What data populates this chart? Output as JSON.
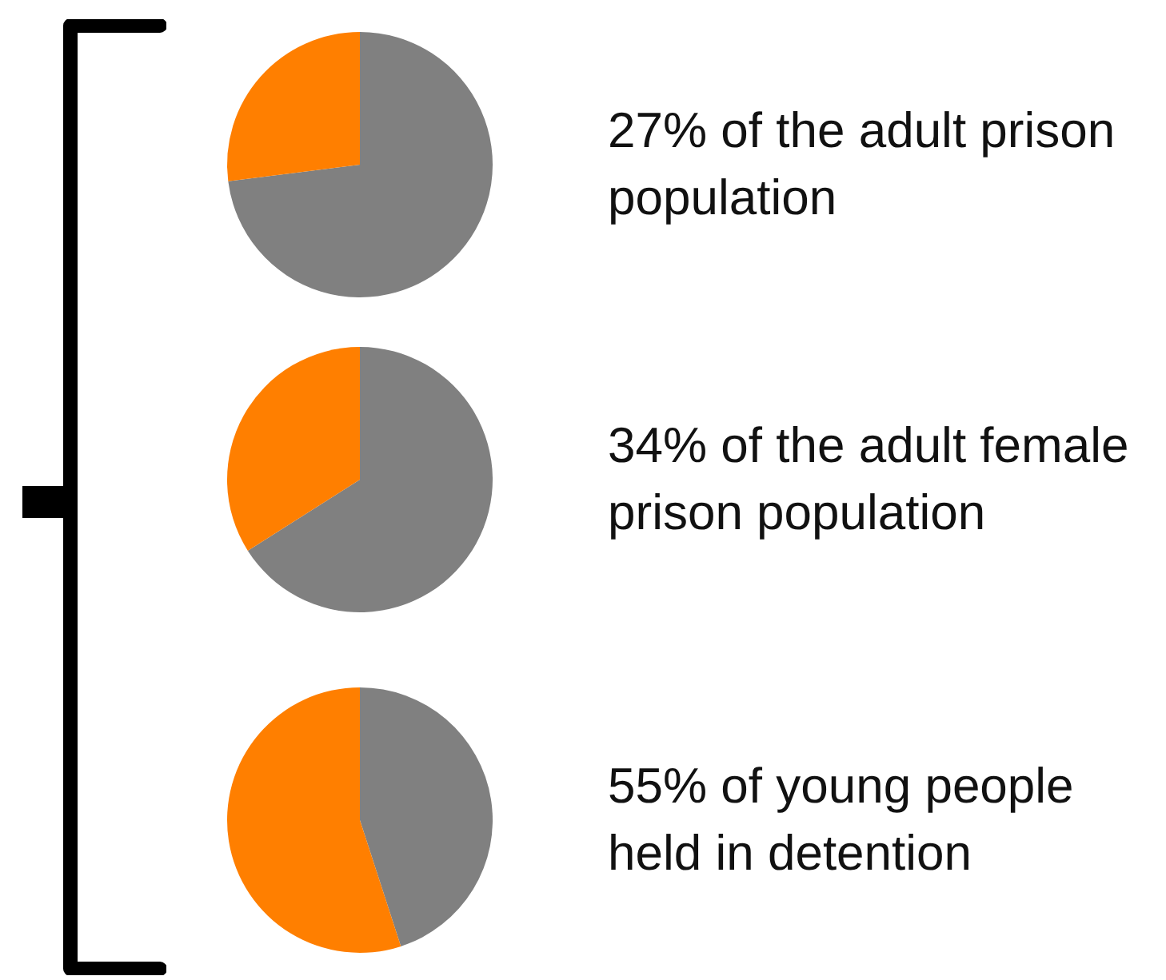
{
  "chart_data": [
    {
      "type": "pie",
      "title": "27% of the adult prison population",
      "categories": [
        null,
        null
      ],
      "values": [
        73,
        27
      ],
      "colors": [
        "#808080",
        "#ff7f00"
      ]
    },
    {
      "type": "pie",
      "title": "34% of the adult female prison population",
      "categories": [
        null,
        null
      ],
      "values": [
        66,
        34
      ],
      "colors": [
        "#808080",
        "#ff7f00"
      ]
    },
    {
      "type": "pie",
      "title": "55% of young people held in detention",
      "categories": [
        null,
        null
      ],
      "values": [
        45,
        55
      ],
      "colors": [
        "#808080",
        "#ff7f00"
      ]
    }
  ]
}
